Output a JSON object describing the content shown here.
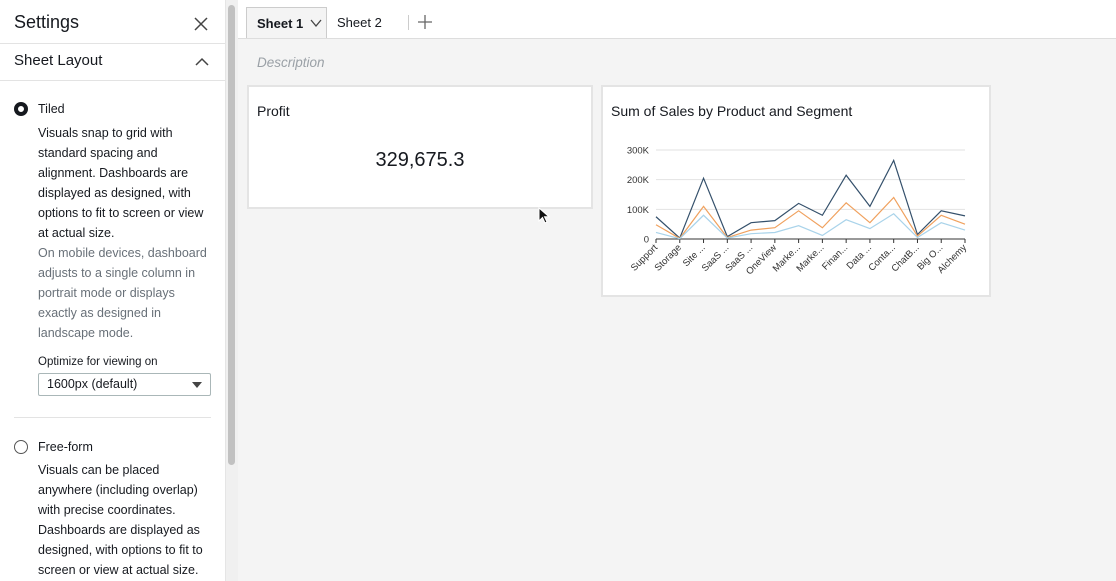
{
  "settings_panel": {
    "title": "Settings",
    "section": "Sheet Layout",
    "options": [
      {
        "label": "Tiled",
        "selected": true,
        "description": "Visuals snap to grid with standard spacing and alignment. Dashboards are displayed as designed, with options to fit to screen or view at actual size.",
        "note": "On mobile devices, dashboard adjusts to a single column in portrait mode or displays exactly as designed in landscape mode."
      },
      {
        "label": "Free-form",
        "selected": false,
        "description": "Visuals can be placed anywhere (including overlap) with precise coordinates. Dashboards are displayed as designed, with options to fit to screen or view at actual size."
      }
    ],
    "optimize_label": "Optimize for viewing on",
    "optimize_value": "1600px (default)"
  },
  "tabs": [
    {
      "label": "Sheet 1",
      "active": true
    },
    {
      "label": "Sheet 2",
      "active": false
    }
  ],
  "description_placeholder": "Description",
  "kpi": {
    "title": "Profit",
    "value": "329,675.3"
  },
  "chart_data": {
    "type": "line",
    "title": "Sum of Sales by Product and Segment",
    "categories": [
      "Support",
      "Storage",
      "Site ...",
      "SaaS ...",
      "SaaS ...",
      "OneView",
      "Marke...",
      "Marke...",
      "Finan...",
      "Data ...",
      "Conta...",
      "ChatB...",
      "Big O...",
      "Alchemy"
    ],
    "series": [
      {
        "color": "#34506b",
        "values": [
          75000,
          3000,
          205000,
          8000,
          55000,
          62000,
          120000,
          80000,
          215000,
          110000,
          265000,
          15000,
          95000,
          78000
        ]
      },
      {
        "color": "#f0a15e",
        "values": [
          48000,
          2000,
          110000,
          5000,
          30000,
          38000,
          95000,
          38000,
          122000,
          55000,
          140000,
          10000,
          80000,
          50000
        ]
      },
      {
        "color": "#a9d3ea",
        "values": [
          22000,
          1000,
          80000,
          3000,
          18000,
          22000,
          45000,
          12000,
          65000,
          35000,
          85000,
          5000,
          55000,
          30000
        ]
      }
    ],
    "ylim": [
      0,
      300000
    ],
    "yticks": [
      0,
      {
        "value": 100000,
        "label": "100K"
      },
      {
        "value": 200000,
        "label": "200K"
      },
      {
        "value": 300000,
        "label": "300K"
      }
    ],
    "grid": true
  }
}
